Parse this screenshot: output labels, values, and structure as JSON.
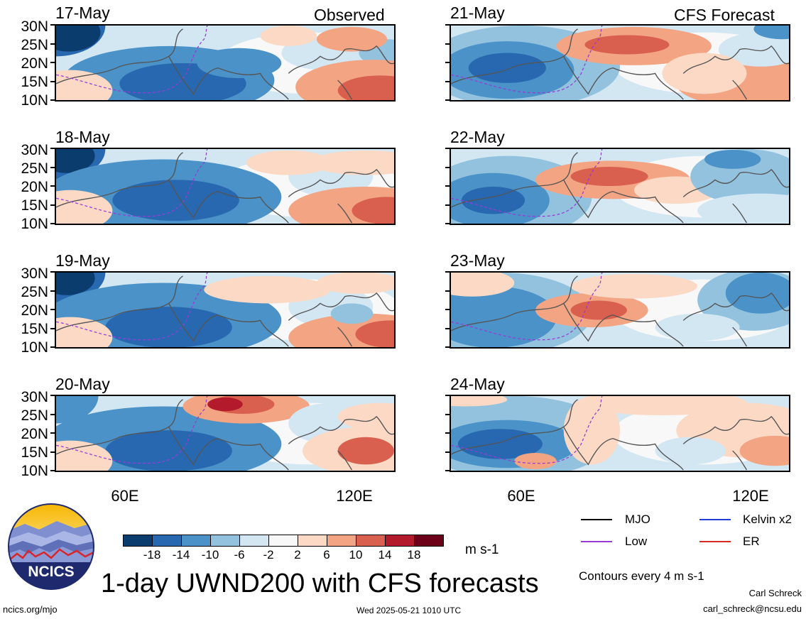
{
  "columns": [
    {
      "header": "Observed",
      "dates": [
        "17-May",
        "18-May",
        "19-May",
        "20-May"
      ]
    },
    {
      "header": "CFS Forecast",
      "dates": [
        "21-May",
        "22-May",
        "23-May",
        "24-May"
      ]
    }
  ],
  "lat_labels": [
    "30N",
    "25N",
    "20N",
    "15N",
    "10N"
  ],
  "lon_labels": [
    "60E",
    "120E"
  ],
  "colorbar": {
    "colors": [
      "#0b3c6e",
      "#2768b0",
      "#4a92c8",
      "#92c2de",
      "#d3e7f3",
      "#f8f8f8",
      "#fcd9c4",
      "#f2a483",
      "#d9604e",
      "#b31b2c",
      "#6b0018"
    ],
    "labels": [
      "-18",
      "-14",
      "-10",
      "-6",
      "-2",
      "2",
      "6",
      "10",
      "14",
      "18"
    ],
    "units": "m s-1"
  },
  "legend": [
    {
      "label": "MJO",
      "color": "#000000"
    },
    {
      "label": "Kelvin x2",
      "color": "#1f3fd8"
    },
    {
      "label": "Low",
      "color": "#9a3ad9"
    },
    {
      "label": "ER",
      "color": "#d92a1f"
    }
  ],
  "contour_note": "Contours every 4 m s-1",
  "title": "1-day UWND200 with CFS forecasts",
  "logo_text": "NCICS",
  "footer": {
    "url": "ncics.org/mjo",
    "timestamp": "Wed 2025-05-21 1010 UTC",
    "author": "Carl Schreck",
    "email": "carl_schreck@ncsu.edu"
  },
  "chart_data": {
    "type": "heatmap",
    "variable": "UWND200",
    "units": "m s-1",
    "contour_interval": 4,
    "xlabel": "",
    "ylabel": "",
    "x_ticks": [
      "60E",
      "120E"
    ],
    "y_ticks": [
      "30N",
      "25N",
      "20N",
      "15N",
      "10N"
    ],
    "ylim": [
      10,
      30
    ],
    "color_levels": [
      -18,
      -14,
      -10,
      -6,
      -2,
      2,
      6,
      10,
      14,
      18
    ],
    "panels": [
      "17-May",
      "18-May",
      "19-May",
      "20-May",
      "21-May",
      "22-May",
      "23-May",
      "24-May"
    ],
    "panel_sources": [
      "Observed",
      "Observed",
      "Observed",
      "Observed",
      "CFS Forecast",
      "CFS Forecast",
      "CFS Forecast",
      "CFS Forecast"
    ],
    "series": [
      {
        "name": "MJO",
        "color": "#000000"
      },
      {
        "name": "Kelvin x2",
        "color": "#1f3fd8"
      },
      {
        "name": "Low",
        "color": "#9a3ad9"
      },
      {
        "name": "ER",
        "color": "#d92a1f"
      }
    ]
  }
}
